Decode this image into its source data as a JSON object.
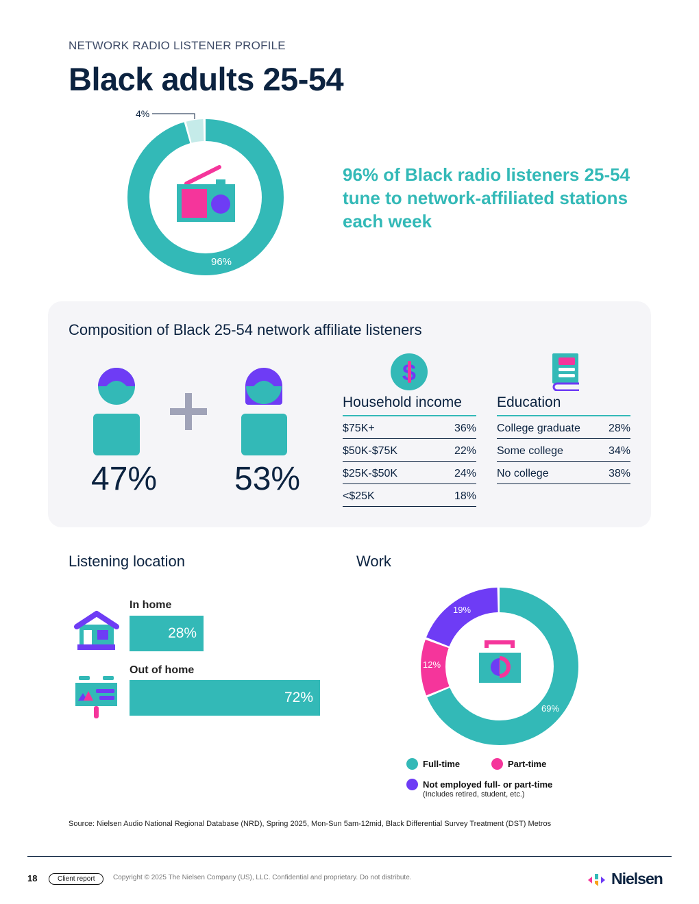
{
  "eyebrow": "NETWORK RADIO LISTENER PROFILE",
  "title": "Black adults 25-54",
  "reach": {
    "headline": "96% of Black radio listeners 25-54 tune to network-affiliated stations each week",
    "values": [
      96,
      4
    ],
    "labels": [
      "96%",
      "4%"
    ]
  },
  "composition": {
    "title": "Composition of Black 25-54 network affiliate listeners",
    "male_pct": "47%",
    "female_pct": "53%",
    "income": {
      "title": "Household income",
      "rows": [
        {
          "label": "$75K+",
          "value": "36%"
        },
        {
          "label": "$50K-$75K",
          "value": "22%"
        },
        {
          "label": "$25K-$50K",
          "value": "24%"
        },
        {
          "label": "<$25K",
          "value": "18%"
        }
      ]
    },
    "education": {
      "title": "Education",
      "rows": [
        {
          "label": "College graduate",
          "value": "28%"
        },
        {
          "label": "Some college",
          "value": "34%"
        },
        {
          "label": "No college",
          "value": "38%"
        }
      ]
    }
  },
  "location": {
    "title": "Listening location",
    "items": [
      {
        "label": "In home",
        "value": 28,
        "text": "28%"
      },
      {
        "label": "Out of home",
        "value": 72,
        "text": "72%"
      }
    ]
  },
  "work": {
    "title": "Work",
    "segments": [
      {
        "name": "Full-time",
        "value": 69,
        "text": "69%",
        "color": "#33b9b7"
      },
      {
        "name": "Part-time",
        "value": 12,
        "text": "12%",
        "color": "#f5359b"
      },
      {
        "name": "Not employed full- or part-time",
        "value": 19,
        "text": "19%",
        "color": "#6e3cf5"
      }
    ],
    "note": "(Includes retired, student, etc.)"
  },
  "source": "Source: Nielsen Audio National Regional Database (NRD), Spring 2025, Mon-Sun 5am-12mid, Black Differential Survey Treatment (DST) Metros",
  "footer": {
    "page": "18",
    "badge": "Client report",
    "copyright": "Copyright © 2025 The Nielsen Company (US), LLC. Confidential and proprietary. Do not distribute.",
    "brand": "Nielsen"
  },
  "colors": {
    "teal": "#33b9b7",
    "light_teal": "#c5ebe9",
    "pink": "#f5359b",
    "purple": "#6e3cf5",
    "navy": "#0c2340"
  }
}
